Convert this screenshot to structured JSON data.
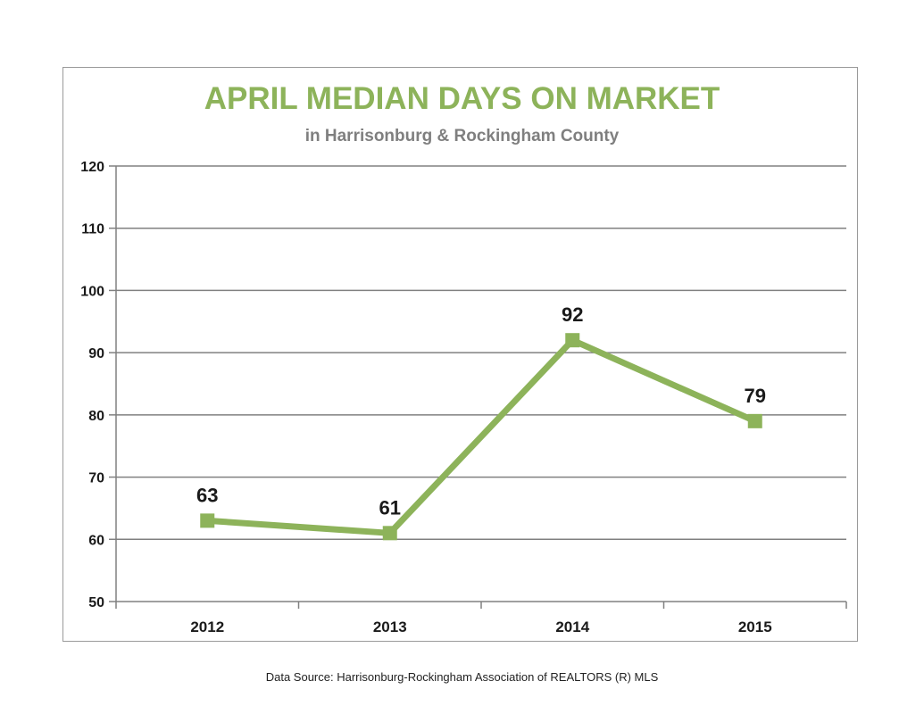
{
  "chart_data": {
    "type": "line",
    "title": "APRIL MEDIAN DAYS ON MARKET",
    "subtitle": "in Harrisonburg  & Rockingham County",
    "categories": [
      "2012",
      "2013",
      "2014",
      "2015"
    ],
    "series": [
      {
        "values": [
          63,
          61,
          92,
          79
        ]
      }
    ],
    "data_labels": [
      "63",
      "61",
      "92",
      "79"
    ],
    "ylim": [
      50,
      120
    ],
    "yticks": [
      50,
      60,
      70,
      80,
      90,
      100,
      110,
      120
    ],
    "ytick_labels": [
      "50",
      "60",
      "70",
      "80",
      "90",
      "100",
      "110",
      "120"
    ],
    "grid": true,
    "legend": "none",
    "xlabel": "",
    "ylabel": "",
    "colors": {
      "line": "#8db35a",
      "title": "#8db35a",
      "subtitle": "#7f7f7f",
      "grid": "#808080"
    }
  },
  "footer": {
    "source": "Data Source: Harrisonburg-Rockingham Association of REALTORS (R) MLS"
  }
}
